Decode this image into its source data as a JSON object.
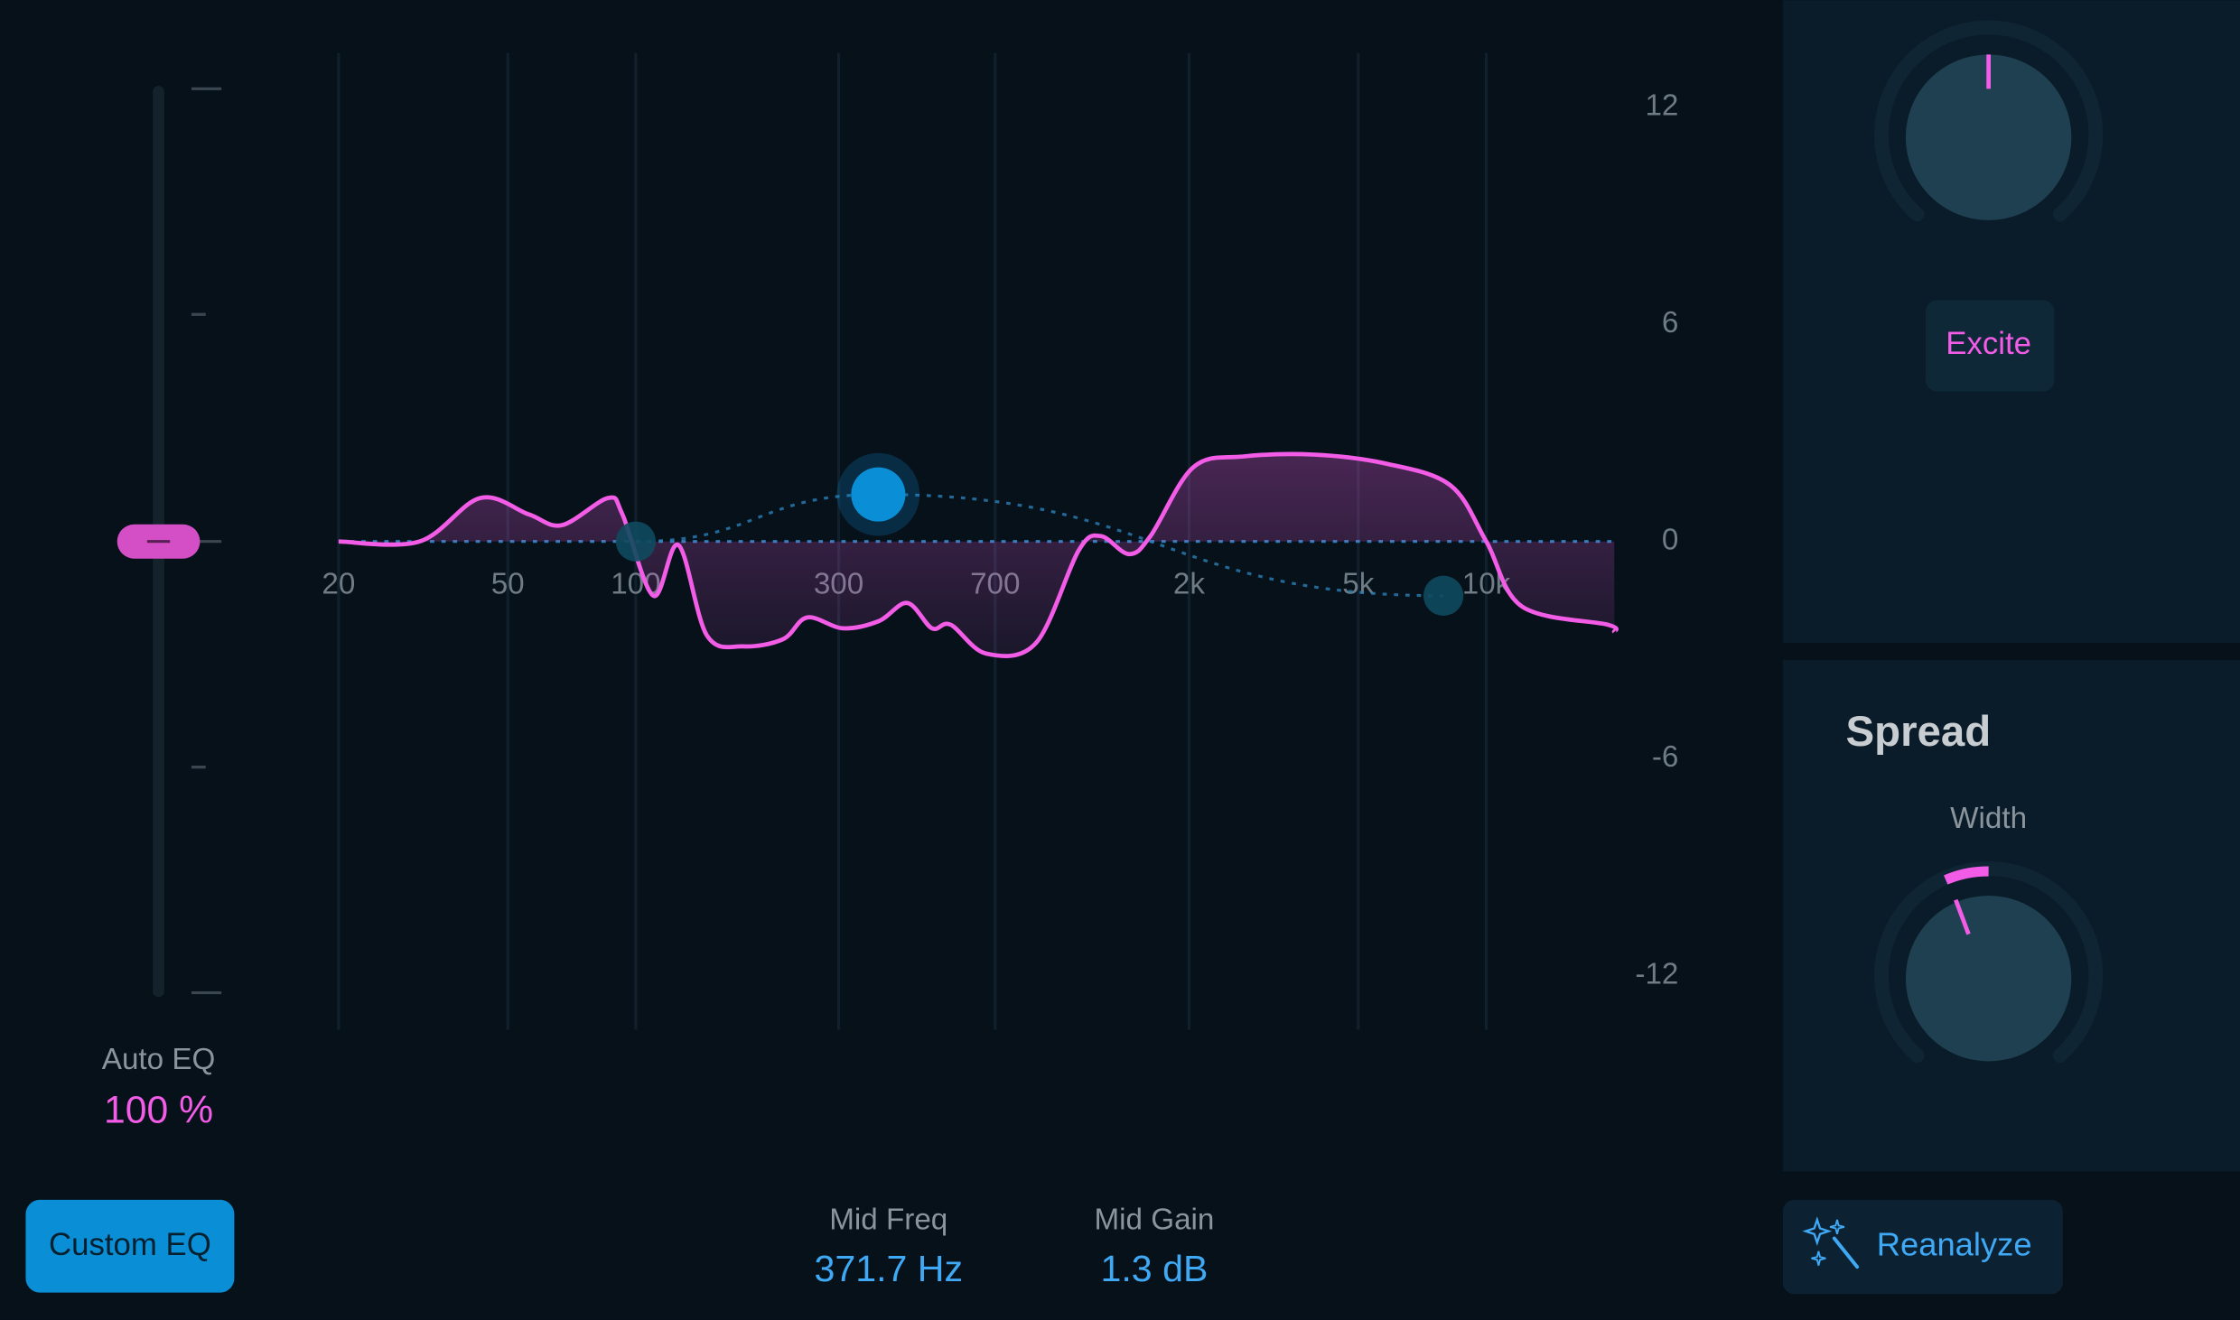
{
  "chart_data": {
    "type": "line",
    "fill": true,
    "xscale": "log",
    "grid": "x",
    "x": [
      20,
      31,
      43,
      56,
      67,
      86,
      93,
      110,
      126,
      147,
      179,
      222,
      253,
      307,
      373,
      435,
      497,
      550,
      667,
      874,
      1100,
      1240,
      1445,
      1623,
      2046,
      2685,
      3954,
      5820,
      8240,
      10000,
      12140,
      19300,
      20000
    ],
    "values": [
      0,
      0,
      1.2,
      0.75,
      0.45,
      1.2,
      0.75,
      -1.5,
      -0.1,
      -2.6,
      -2.9,
      -2.7,
      -2.1,
      -2.4,
      -2.2,
      -1.7,
      -2.4,
      -2.3,
      -3.1,
      -2.8,
      -0.25,
      0.15,
      -0.35,
      0.15,
      2.05,
      2.35,
      2.4,
      2.15,
      1.55,
      0,
      -1.8,
      -2.3,
      -2.5
    ],
    "color": "#f25ce6",
    "xlim": [
      20,
      20000
    ],
    "ylim": [
      -13.5,
      13.5
    ],
    "xticks": [
      20,
      50,
      100,
      300,
      700,
      {
        "value": 2000,
        "label": "2k"
      },
      {
        "value": 5000,
        "label": "5k"
      },
      {
        "value": 10000,
        "label": "10k"
      }
    ],
    "yticks": [
      12,
      6,
      0,
      -6,
      -12
    ],
    "nodes": [
      {
        "freq": 100,
        "gain": 0
      },
      {
        "freq": 371.7,
        "gain": 1.3
      },
      {
        "freq": 7930,
        "gain": -1.5
      }
    ],
    "node_color": "#0a8fd6"
  },
  "auto_eq": {
    "label": "Auto EQ",
    "value": "100 %"
  },
  "custom_eq_button": "Custom EQ",
  "mid_freq": {
    "label": "Mid Freq",
    "value": "371.7 Hz"
  },
  "mid_gain": {
    "label": "Mid Gain",
    "value": "1.3 dB"
  },
  "excite_button": "Excite",
  "spread": {
    "title": "Spread",
    "width_label": "Width"
  },
  "reanalyze_button": "Reanalyze"
}
